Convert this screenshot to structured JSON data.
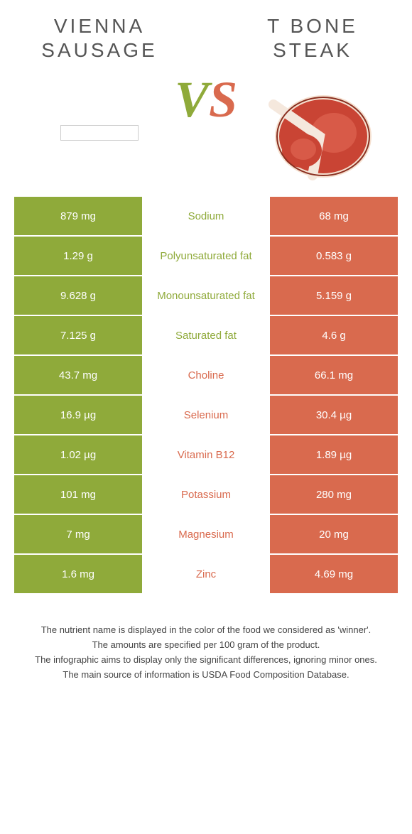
{
  "colors": {
    "left": "#8faa3a",
    "right": "#d96a4e",
    "text": "#555",
    "footer": "#444",
    "white": "#ffffff"
  },
  "header": {
    "left_title": "Vienna sausage",
    "right_title": "T bone steak",
    "vs_v": "V",
    "vs_s": "S"
  },
  "nutrients": [
    {
      "left": "879 mg",
      "label": "Sodium",
      "right": "68 mg",
      "winner": "left"
    },
    {
      "left": "1.29 g",
      "label": "Polyunsaturated fat",
      "right": "0.583 g",
      "winner": "left"
    },
    {
      "left": "9.628 g",
      "label": "Monounsaturated fat",
      "right": "5.159 g",
      "winner": "left"
    },
    {
      "left": "7.125 g",
      "label": "Saturated fat",
      "right": "4.6 g",
      "winner": "left"
    },
    {
      "left": "43.7 mg",
      "label": "Choline",
      "right": "66.1 mg",
      "winner": "right"
    },
    {
      "left": "16.9 µg",
      "label": "Selenium",
      "right": "30.4 µg",
      "winner": "right"
    },
    {
      "left": "1.02 µg",
      "label": "Vitamin B12",
      "right": "1.89 µg",
      "winner": "right"
    },
    {
      "left": "101 mg",
      "label": "Potassium",
      "right": "280 mg",
      "winner": "right"
    },
    {
      "left": "7 mg",
      "label": "Magnesium",
      "right": "20 mg",
      "winner": "right"
    },
    {
      "left": "1.6 mg",
      "label": "Zinc",
      "right": "4.69 mg",
      "winner": "right"
    }
  ],
  "footer": {
    "line1": "The nutrient name is displayed in the color of the food we considered as 'winner'.",
    "line2": "The amounts are specified per 100 gram of the product.",
    "line3": "The infographic aims to display only the significant differences, ignoring minor ones.",
    "line4": "The main source of information is USDA Food Composition Database."
  }
}
